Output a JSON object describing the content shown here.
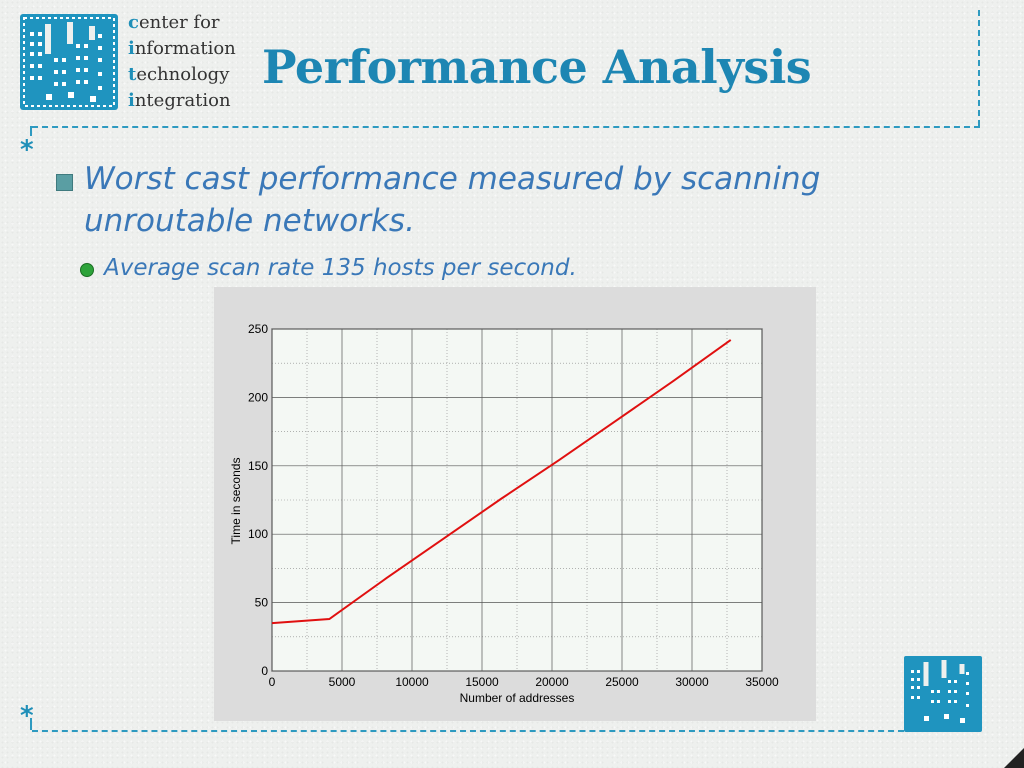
{
  "logo": {
    "lines": [
      {
        "lead": "c",
        "rest": "enter for"
      },
      {
        "lead": "i",
        "rest": "nformation"
      },
      {
        "lead": "t",
        "rest": "echnology"
      },
      {
        "lead": "i",
        "rest": "ntegration"
      }
    ]
  },
  "slide": {
    "title": "Performance Analysis",
    "bullet_main": "Worst cast performance measured by scanning unroutable networks.",
    "bullet_sub": "Average scan rate 135 hosts per second.",
    "decor_symbol": "*"
  },
  "colors": {
    "accent": "#1d86b3",
    "text": "#3a78b8",
    "line": "#e01010"
  },
  "chart_data": {
    "type": "line",
    "xlabel": "Number of addresses",
    "ylabel": "Time in seconds",
    "xlim": [
      0,
      35000
    ],
    "ylim": [
      0,
      250
    ],
    "xticks": [
      0,
      5000,
      10000,
      15000,
      20000,
      25000,
      30000,
      35000
    ],
    "yticks": [
      0,
      50,
      100,
      150,
      200,
      250
    ],
    "grid": true,
    "series": [
      {
        "x": [
          0,
          4096,
          8192,
          12288,
          16384,
          20480,
          24576,
          28672,
          32768
        ],
        "y": [
          35,
          38,
          68,
          97,
          126,
          154,
          183,
          212,
          242
        ]
      }
    ]
  }
}
